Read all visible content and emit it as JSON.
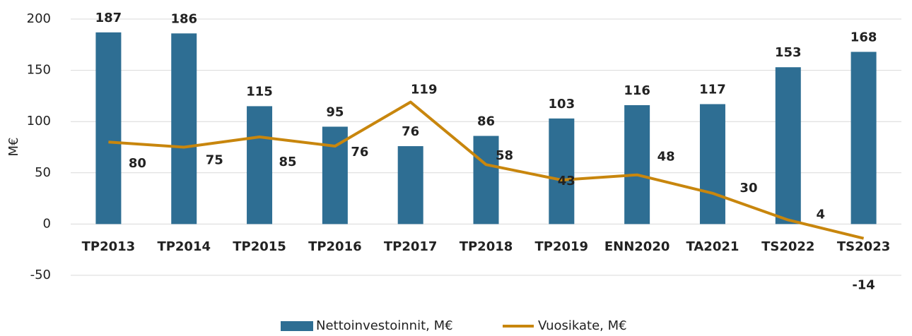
{
  "chart_data": {
    "type": "bar-line",
    "y_label": "M€",
    "categories": [
      "TP2013",
      "TP2014",
      "TP2015",
      "TP2016",
      "TP2017",
      "TP2018",
      "TP2019",
      "ENN2020",
      "TA2021",
      "TS2022",
      "TS2023"
    ],
    "series": [
      {
        "name": "Nettoinvestoinnit, M€",
        "type": "bar",
        "color": "#2e6e93",
        "values": [
          187,
          186,
          115,
          95,
          76,
          86,
          103,
          116,
          117,
          153,
          168
        ]
      },
      {
        "name": "Vuosikate, M€",
        "type": "line",
        "color": "#c8860d",
        "values": [
          80,
          75,
          85,
          76,
          119,
          58,
          43,
          48,
          30,
          4,
          -14
        ]
      }
    ],
    "ylim": [
      -50,
      200
    ],
    "yticks": [
      -50,
      0,
      50,
      100,
      150,
      200
    ],
    "grid": true,
    "legend": "bottom"
  }
}
